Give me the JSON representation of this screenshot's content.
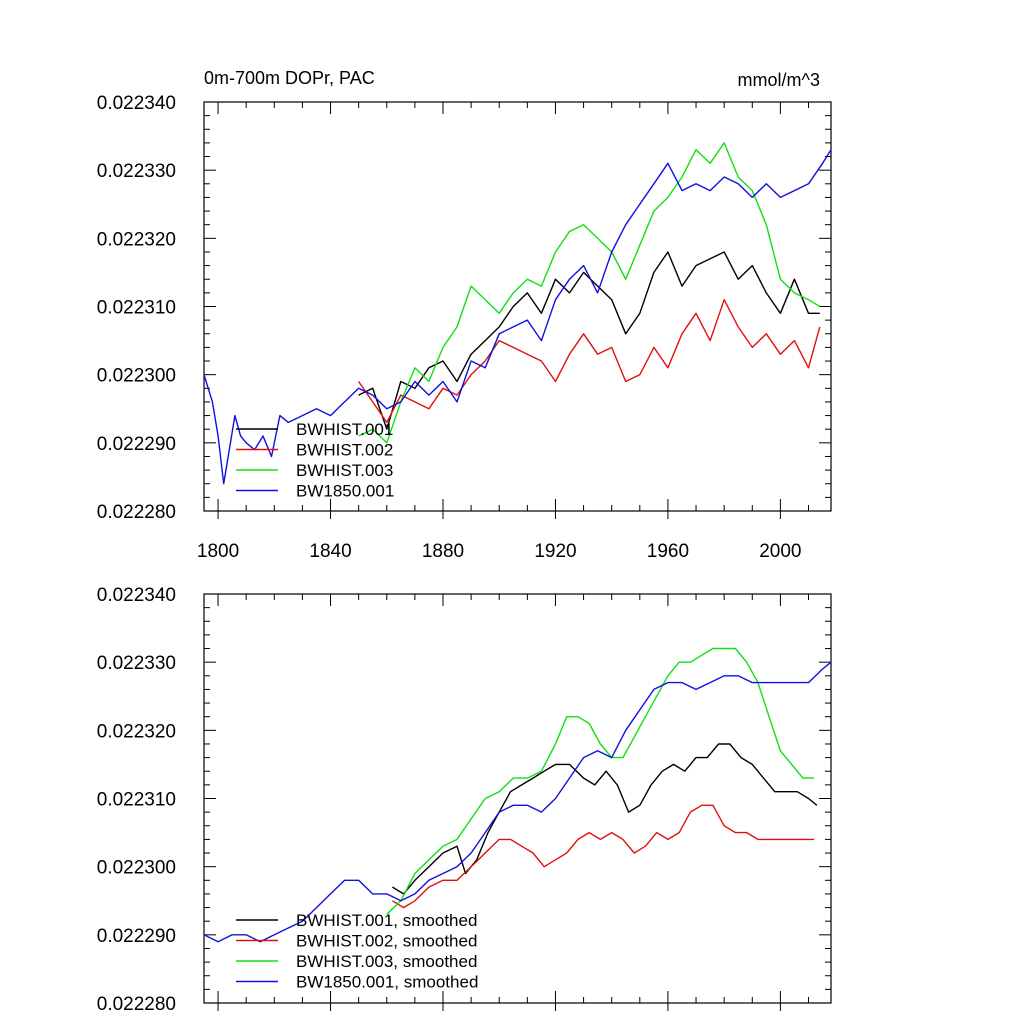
{
  "colors": {
    "BWHIST.001": "#000000",
    "BWHIST.002": "#e01010",
    "BWHIST.003": "#10e010",
    "BW1850.001": "#1010e0"
  },
  "chart_data": [
    {
      "type": "line",
      "title": "0m-700m DOPr, PAC",
      "units": "mmol/m^3",
      "xlim": [
        1795,
        2018
      ],
      "ylim": [
        0.02228,
        0.02234
      ],
      "x_ticks": [
        1800,
        1840,
        1880,
        1920,
        1960,
        2000
      ],
      "x_tick_labels": [
        "1800",
        "1840",
        "1880",
        "1920",
        "1960",
        "2000"
      ],
      "y_ticks": [
        0.02228,
        0.02229,
        0.0223,
        0.02231,
        0.02232,
        0.02233,
        0.02234
      ],
      "y_tick_labels": [
        "0.022280",
        "0.022290",
        "0.022300",
        "0.022310",
        "0.022320",
        "0.022330",
        "0.022340"
      ],
      "legend": [
        "BWHIST.001",
        "BWHIST.002",
        "BWHIST.003",
        "BW1850.001"
      ],
      "series": [
        {
          "name": "BWHIST.001",
          "color": "#000000",
          "x": [
            1850,
            1855,
            1860,
            1865,
            1870,
            1875,
            1880,
            1885,
            1890,
            1895,
            1900,
            1905,
            1910,
            1915,
            1920,
            1925,
            1930,
            1935,
            1940,
            1945,
            1950,
            1955,
            1960,
            1965,
            1970,
            1975,
            1980,
            1985,
            1990,
            1995,
            2000,
            2005,
            2010,
            2014
          ],
          "y": [
            0.022297,
            0.022298,
            0.022292,
            0.022299,
            0.022298,
            0.022301,
            0.022302,
            0.022299,
            0.022303,
            0.022305,
            0.022307,
            0.02231,
            0.022312,
            0.022309,
            0.022314,
            0.022312,
            0.022315,
            0.022313,
            0.022311,
            0.022306,
            0.022309,
            0.022315,
            0.022318,
            0.022313,
            0.022316,
            0.022317,
            0.022318,
            0.022314,
            0.022316,
            0.022312,
            0.022309,
            0.022314,
            0.022309,
            0.022309
          ]
        },
        {
          "name": "BWHIST.002",
          "color": "#e01010",
          "x": [
            1850,
            1855,
            1860,
            1865,
            1870,
            1875,
            1880,
            1885,
            1890,
            1895,
            1900,
            1905,
            1910,
            1915,
            1920,
            1925,
            1930,
            1935,
            1940,
            1945,
            1950,
            1955,
            1960,
            1965,
            1970,
            1975,
            1980,
            1985,
            1990,
            1995,
            2000,
            2005,
            2010,
            2014
          ],
          "y": [
            0.022299,
            0.022296,
            0.022293,
            0.022297,
            0.022296,
            0.022295,
            0.022298,
            0.022297,
            0.0223,
            0.022302,
            0.022305,
            0.022304,
            0.022303,
            0.022302,
            0.022299,
            0.022303,
            0.022306,
            0.022303,
            0.022304,
            0.022299,
            0.0223,
            0.022304,
            0.022301,
            0.022306,
            0.022309,
            0.022305,
            0.022311,
            0.022307,
            0.022304,
            0.022306,
            0.022303,
            0.022305,
            0.022301,
            0.022307
          ]
        },
        {
          "name": "BWHIST.003",
          "color": "#10e010",
          "x": [
            1850,
            1855,
            1860,
            1865,
            1870,
            1875,
            1880,
            1885,
            1890,
            1895,
            1900,
            1905,
            1910,
            1915,
            1920,
            1925,
            1930,
            1935,
            1940,
            1945,
            1950,
            1955,
            1960,
            1965,
            1970,
            1975,
            1980,
            1985,
            1990,
            1995,
            2000,
            2005,
            2010,
            2014
          ],
          "y": [
            0.022291,
            0.022292,
            0.02229,
            0.022296,
            0.022301,
            0.022299,
            0.022304,
            0.022307,
            0.022313,
            0.022311,
            0.022309,
            0.022312,
            0.022314,
            0.022313,
            0.022318,
            0.022321,
            0.022322,
            0.02232,
            0.022318,
            0.022314,
            0.022319,
            0.022324,
            0.022326,
            0.022329,
            0.022333,
            0.022331,
            0.022334,
            0.022329,
            0.022327,
            0.022322,
            0.022314,
            0.022312,
            0.022311,
            0.02231
          ]
        },
        {
          "name": "BW1850.001",
          "color": "#1010e0",
          "x": [
            1795,
            1798,
            1800,
            1802,
            1804,
            1806,
            1808,
            1810,
            1813,
            1816,
            1819,
            1822,
            1825,
            1830,
            1835,
            1840,
            1845,
            1850,
            1855,
            1860,
            1865,
            1870,
            1875,
            1880,
            1885,
            1890,
            1895,
            1900,
            1905,
            1910,
            1915,
            1920,
            1925,
            1930,
            1935,
            1940,
            1945,
            1950,
            1955,
            1960,
            1965,
            1970,
            1975,
            1980,
            1985,
            1990,
            1995,
            2000,
            2005,
            2010,
            2015,
            2018
          ],
          "y": [
            0.0223,
            0.022296,
            0.022291,
            0.022284,
            0.022289,
            0.022294,
            0.022291,
            0.02229,
            0.022289,
            0.022291,
            0.022288,
            0.022294,
            0.022293,
            0.022294,
            0.022295,
            0.022294,
            0.022296,
            0.022298,
            0.022297,
            0.022295,
            0.022296,
            0.022299,
            0.022297,
            0.022299,
            0.022296,
            0.022302,
            0.022301,
            0.022306,
            0.022307,
            0.022308,
            0.022305,
            0.022311,
            0.022314,
            0.022316,
            0.022312,
            0.022318,
            0.022322,
            0.022325,
            0.022328,
            0.022331,
            0.022327,
            0.022328,
            0.022327,
            0.022329,
            0.022328,
            0.022326,
            0.022328,
            0.022326,
            0.022327,
            0.022328,
            0.022331,
            0.022333
          ]
        }
      ]
    },
    {
      "type": "line",
      "title": "",
      "xlim": [
        1795,
        2018
      ],
      "ylim": [
        0.02228,
        0.02234
      ],
      "y_ticks": [
        0.02228,
        0.02229,
        0.0223,
        0.02231,
        0.02232,
        0.02233,
        0.02234
      ],
      "y_tick_labels": [
        "0.022280",
        "0.022290",
        "0.022300",
        "0.022310",
        "0.022320",
        "0.022330",
        "0.022340"
      ],
      "legend": [
        "BWHIST.001, smoothed",
        "BWHIST.002, smoothed",
        "BWHIST.003, smoothed",
        "BW1850.001, smoothed"
      ],
      "series": [
        {
          "name": "BWHIST.001, smoothed",
          "color": "#000000",
          "x": [
            1862,
            1866,
            1870,
            1875,
            1880,
            1885,
            1888,
            1892,
            1896,
            1900,
            1904,
            1908,
            1912,
            1916,
            1920,
            1925,
            1930,
            1934,
            1938,
            1942,
            1946,
            1950,
            1954,
            1958,
            1962,
            1966,
            1970,
            1974,
            1978,
            1982,
            1986,
            1990,
            1994,
            1998,
            2002,
            2006,
            2010,
            2013
          ],
          "y": [
            0.022297,
            0.022296,
            0.022298,
            0.0223,
            0.022302,
            0.022303,
            0.022299,
            0.022301,
            0.022305,
            0.022308,
            0.022311,
            0.022312,
            0.022313,
            0.022314,
            0.022315,
            0.022315,
            0.022313,
            0.022312,
            0.022314,
            0.022312,
            0.022308,
            0.022309,
            0.022312,
            0.022314,
            0.022315,
            0.022314,
            0.022316,
            0.022316,
            0.022318,
            0.022318,
            0.022316,
            0.022315,
            0.022313,
            0.022311,
            0.022311,
            0.022311,
            0.02231,
            0.022309
          ]
        },
        {
          "name": "BWHIST.002, smoothed",
          "color": "#e01010",
          "x": [
            1862,
            1866,
            1870,
            1875,
            1880,
            1885,
            1890,
            1895,
            1900,
            1904,
            1908,
            1912,
            1916,
            1920,
            1924,
            1928,
            1932,
            1936,
            1940,
            1944,
            1948,
            1952,
            1956,
            1960,
            1964,
            1968,
            1972,
            1976,
            1980,
            1984,
            1988,
            1992,
            1996,
            2000,
            2004,
            2008,
            2012
          ],
          "y": [
            0.022295,
            0.022294,
            0.022295,
            0.022297,
            0.022298,
            0.022298,
            0.0223,
            0.022302,
            0.022304,
            0.022304,
            0.022303,
            0.022302,
            0.0223,
            0.022301,
            0.022302,
            0.022304,
            0.022305,
            0.022304,
            0.022305,
            0.022304,
            0.022302,
            0.022303,
            0.022305,
            0.022304,
            0.022305,
            0.022308,
            0.022309,
            0.022309,
            0.022306,
            0.022305,
            0.022305,
            0.022304,
            0.022304,
            0.022304,
            0.022304,
            0.022304,
            0.022304
          ]
        },
        {
          "name": "BWHIST.003, smoothed",
          "color": "#10e010",
          "x": [
            1860,
            1865,
            1870,
            1875,
            1880,
            1885,
            1890,
            1895,
            1900,
            1905,
            1910,
            1915,
            1920,
            1924,
            1928,
            1932,
            1936,
            1940,
            1944,
            1948,
            1952,
            1956,
            1960,
            1964,
            1968,
            1972,
            1976,
            1980,
            1984,
            1988,
            1992,
            1996,
            2000,
            2004,
            2008,
            2012
          ],
          "y": [
            0.022293,
            0.022295,
            0.022299,
            0.022301,
            0.022303,
            0.022304,
            0.022307,
            0.02231,
            0.022311,
            0.022313,
            0.022313,
            0.022314,
            0.022318,
            0.022322,
            0.022322,
            0.022321,
            0.022318,
            0.022316,
            0.022316,
            0.022319,
            0.022322,
            0.022325,
            0.022328,
            0.02233,
            0.02233,
            0.022331,
            0.022332,
            0.022332,
            0.022332,
            0.02233,
            0.022327,
            0.022322,
            0.022317,
            0.022315,
            0.022313,
            0.022313
          ]
        },
        {
          "name": "BW1850.001, smoothed",
          "color": "#1010e0",
          "x": [
            1795,
            1800,
            1805,
            1810,
            1815,
            1820,
            1825,
            1830,
            1835,
            1840,
            1845,
            1850,
            1855,
            1860,
            1865,
            1870,
            1875,
            1880,
            1885,
            1890,
            1895,
            1900,
            1905,
            1910,
            1915,
            1920,
            1925,
            1930,
            1935,
            1940,
            1945,
            1950,
            1955,
            1960,
            1965,
            1970,
            1975,
            1980,
            1985,
            1990,
            1995,
            2000,
            2005,
            2010,
            2015,
            2018
          ],
          "y": [
            0.02229,
            0.022289,
            0.02229,
            0.02229,
            0.022289,
            0.02229,
            0.022291,
            0.022292,
            0.022294,
            0.022296,
            0.022298,
            0.022298,
            0.022296,
            0.022296,
            0.022295,
            0.022296,
            0.022298,
            0.022299,
            0.0223,
            0.022302,
            0.022305,
            0.022308,
            0.022309,
            0.022309,
            0.022308,
            0.02231,
            0.022313,
            0.022316,
            0.022317,
            0.022316,
            0.02232,
            0.022323,
            0.022326,
            0.022327,
            0.022327,
            0.022326,
            0.022327,
            0.022328,
            0.022328,
            0.022327,
            0.022327,
            0.022327,
            0.022327,
            0.022327,
            0.022329,
            0.02233
          ]
        }
      ]
    }
  ]
}
